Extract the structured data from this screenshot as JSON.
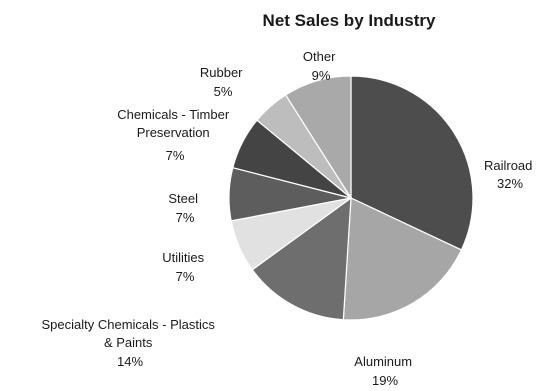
{
  "chart_data": {
    "type": "pie",
    "title": "Net Sales by Industry",
    "slices": [
      {
        "label": "Railroad",
        "percent_label": "32%",
        "value": 32,
        "color": "#4d4d4d"
      },
      {
        "label": "Aluminum",
        "percent_label": "19%",
        "value": 19,
        "color": "#a6a6a6"
      },
      {
        "label": "Specialty Chemicals - Plastics & Paints",
        "percent_label": "14%",
        "value": 14,
        "color": "#6e6e6e"
      },
      {
        "label": "Utilities",
        "percent_label": "7%",
        "value": 7,
        "color": "#e1e1e1"
      },
      {
        "label": "Steel",
        "percent_label": "7%",
        "value": 7,
        "color": "#5d5d5d"
      },
      {
        "label": "Chemicals - Timber Preservation",
        "percent_label": "7%",
        "value": 7,
        "color": "#444444"
      },
      {
        "label": "Rubber",
        "percent_label": "5%",
        "value": 5,
        "color": "#bdbdbd"
      },
      {
        "label": "Other",
        "percent_label": "9%",
        "value": 9,
        "color": "#a9a9a9"
      }
    ],
    "legend": "none"
  }
}
